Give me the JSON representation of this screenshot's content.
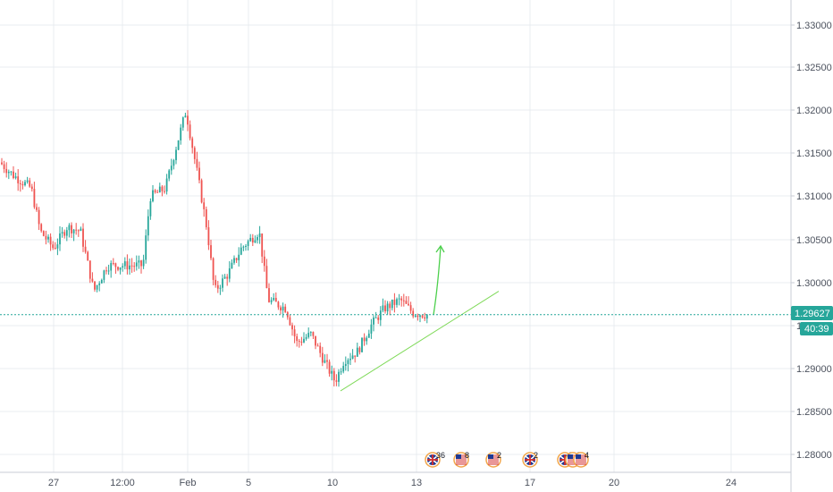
{
  "colors": {
    "up": "#26a69a",
    "down": "#ef5350",
    "grid": "#e9ecf1",
    "axis_text": "#4c525e",
    "current_price": "#26a69a",
    "trendline": "#7ed957",
    "arrow": "#4cd04c"
  },
  "price_axis": {
    "labels": [
      "1.33000",
      "1.32500",
      "1.32000",
      "1.31500",
      "1.31000",
      "1.30500",
      "1.30000",
      "1.29500",
      "1.29000",
      "1.28500",
      "1.28000"
    ],
    "current_price": "1.29627",
    "countdown": "40:39"
  },
  "time_axis": {
    "labels": [
      "27",
      "12:00",
      "Feb",
      "5",
      "10",
      "13",
      "17",
      "20",
      "24"
    ]
  },
  "events": [
    {
      "icon": "uk-flag-icon",
      "count": "36"
    },
    {
      "icon": "us-flag-icon",
      "count": "8"
    },
    {
      "icon": "us-flag-icon",
      "count": "2"
    },
    {
      "icon": "uk-flag-icon",
      "count": "2"
    },
    {
      "icon": "uk-flag-icon",
      "count": "2"
    },
    {
      "icon": "us-flag-icon",
      "count": "3"
    },
    {
      "icon": "us-flag-icon",
      "count": "4"
    }
  ],
  "chart_data": {
    "type": "candlestick",
    "symbol_axis": "price",
    "ylim": [
      1.2775,
      1.3335
    ],
    "grid": true,
    "current_price": 1.29627,
    "x_ticks": [
      "27",
      "12:00",
      "Feb",
      "5",
      "10",
      "13",
      "17",
      "20",
      "24"
    ],
    "y_ticks": [
      1.33,
      1.325,
      1.32,
      1.315,
      1.31,
      1.305,
      1.3,
      1.295,
      1.29,
      1.285,
      1.28
    ],
    "price_path_approx": [
      {
        "label": "start",
        "close": 1.3135
      },
      {
        "label": "27",
        "close": 1.3075
      },
      {
        "label": "12:00",
        "close": 1.3005
      },
      {
        "label": "Feb",
        "close": 1.321
      },
      {
        "label": "5",
        "close": 1.304
      },
      {
        "label": "10",
        "close": 1.289
      },
      {
        "label": "13",
        "close": 1.2965
      },
      {
        "label": "last",
        "close": 1.29627
      }
    ],
    "annotations": {
      "trendline_from": {
        "after": "10",
        "price": 1.2874
      },
      "trendline_to": {
        "near": "17",
        "price": 1.299
      },
      "arrow": "up"
    }
  }
}
